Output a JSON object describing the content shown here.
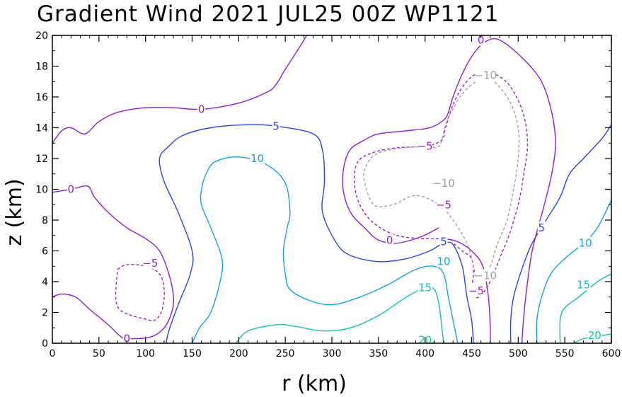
{
  "chart_data": {
    "type": "contour",
    "title": "Gradient Wind 2021 JUL25 00Z   WP1121",
    "xlabel": "r (km)",
    "ylabel": "z (km)",
    "xlim": [
      0,
      600
    ],
    "ylim": [
      0,
      20
    ],
    "x_ticks": [
      "0",
      "50",
      "100",
      "150",
      "200",
      "250",
      "300",
      "350",
      "400",
      "450",
      "500",
      "550",
      "600"
    ],
    "y_ticks": [
      "0",
      "2",
      "4",
      "6",
      "8",
      "10",
      "12",
      "14",
      "16",
      "18",
      "20"
    ],
    "colors": {
      "-10": "#a0a0a0",
      "-5": "#a01ec8",
      "0": "#8c1ed2",
      "5": "#2846dc",
      "10": "#14a0e6",
      "15": "#14beb4",
      "20": "#14c896"
    },
    "contours": [
      {
        "level": 0,
        "dashed": false,
        "points": [
          [
            0,
            13
          ],
          [
            10,
            13.8
          ],
          [
            20,
            14
          ],
          [
            35,
            13.6
          ],
          [
            50,
            14.4
          ],
          [
            70,
            15
          ],
          [
            100,
            15.3
          ],
          [
            130,
            15.3
          ],
          [
            160,
            15.2
          ],
          [
            200,
            15.6
          ],
          [
            230,
            16.3
          ],
          [
            240,
            16.8
          ],
          [
            250,
            17.8
          ],
          [
            265,
            19.2
          ],
          [
            273,
            20
          ]
        ]
      },
      {
        "level": 0,
        "dashed": false,
        "points": [
          [
            0,
            9.8
          ],
          [
            20,
            10
          ],
          [
            38,
            10.2
          ],
          [
            45,
            9.5
          ],
          [
            60,
            8.5
          ],
          [
            80,
            7.5
          ],
          [
            100,
            6.8
          ],
          [
            115,
            6
          ],
          [
            125,
            4.5
          ],
          [
            130,
            3
          ],
          [
            128,
            2
          ],
          [
            120,
            1
          ],
          [
            105,
            0.4
          ],
          [
            80,
            0.3
          ],
          [
            72,
            0.5
          ],
          [
            60,
            1.2
          ],
          [
            40,
            2.2
          ],
          [
            25,
            3
          ],
          [
            10,
            3.2
          ],
          [
            0,
            3
          ]
        ]
      },
      {
        "level": 0,
        "dashed": false,
        "points": [
          [
            415,
            7.5
          ],
          [
            395,
            6.9
          ],
          [
            370,
            6.5
          ],
          [
            350,
            6.7
          ],
          [
            335,
            7.5
          ],
          [
            320,
            8.5
          ],
          [
            312,
            10
          ],
          [
            313,
            11.5
          ],
          [
            320,
            12.6
          ],
          [
            335,
            13.2
          ],
          [
            350,
            13.6
          ],
          [
            380,
            13.8
          ],
          [
            405,
            14
          ],
          [
            420,
            14.5
          ],
          [
            425,
            15
          ],
          [
            430,
            16
          ],
          [
            440,
            17.5
          ],
          [
            452,
            18.8
          ],
          [
            465,
            19.6
          ],
          [
            480,
            19.7
          ],
          [
            505,
            18.5
          ],
          [
            525,
            17
          ],
          [
            536,
            15
          ],
          [
            540,
            13
          ],
          [
            536,
            11
          ],
          [
            528,
            9
          ],
          [
            515,
            6
          ],
          [
            508,
            3
          ],
          [
            505,
            1
          ],
          [
            504,
            0
          ]
        ]
      },
      {
        "level": 0,
        "dashed": false,
        "points": [
          [
            470,
            0
          ],
          [
            470,
            1
          ],
          [
            468,
            3
          ],
          [
            462,
            5
          ],
          [
            450,
            6
          ],
          [
            435,
            6.6
          ],
          [
            420,
            6.8
          ]
        ]
      },
      {
        "level": -5,
        "dashed": true,
        "points": [
          [
            420,
            6.8
          ],
          [
            400,
            6.8
          ],
          [
            370,
            7
          ],
          [
            345,
            7.8
          ],
          [
            330,
            9
          ],
          [
            324,
            10.5
          ],
          [
            328,
            11.8
          ],
          [
            345,
            12.4
          ],
          [
            370,
            12.7
          ],
          [
            400,
            12.8
          ],
          [
            418,
            13.2
          ],
          [
            422,
            14
          ],
          [
            430,
            15.5
          ],
          [
            442,
            16.8
          ],
          [
            455,
            17.5
          ],
          [
            470,
            17.6
          ],
          [
            490,
            16.8
          ],
          [
            505,
            15
          ],
          [
            510,
            13
          ],
          [
            506,
            11
          ],
          [
            500,
            9
          ],
          [
            490,
            7
          ],
          [
            480,
            5.5
          ],
          [
            470,
            4
          ],
          [
            458,
            3
          ],
          [
            450,
            3.3
          ],
          [
            452,
            4.5
          ],
          [
            450,
            5.5
          ],
          [
            440,
            6
          ],
          [
            430,
            6.5
          ]
        ]
      },
      {
        "level": -5,
        "dashed": true,
        "points": [
          [
            70,
            4.8
          ],
          [
            80,
            5.1
          ],
          [
            100,
            5
          ],
          [
            115,
            4.5
          ],
          [
            120,
            3.5
          ],
          [
            118,
            2.2
          ],
          [
            110,
            1.5
          ],
          [
            98,
            1.6
          ],
          [
            85,
            1.8
          ],
          [
            72,
            2.2
          ],
          [
            68,
            3
          ],
          [
            70,
            4.8
          ]
        ]
      },
      {
        "level": -10,
        "dashed": true,
        "points": [
          [
            455,
            4
          ],
          [
            452,
            5
          ],
          [
            445,
            6.5
          ],
          [
            430,
            8
          ],
          [
            415,
            9
          ],
          [
            390,
            9.6
          ],
          [
            365,
            9
          ],
          [
            345,
            9
          ],
          [
            335,
            10.5
          ],
          [
            336,
            11.4
          ],
          [
            345,
            12.2
          ],
          [
            365,
            12.6
          ],
          [
            400,
            12.8
          ],
          [
            415,
            12.8
          ],
          [
            422,
            14.2
          ],
          [
            428,
            15
          ],
          [
            440,
            16.2
          ],
          [
            455,
            17
          ],
          [
            470,
            17.2
          ],
          [
            490,
            15.8
          ],
          [
            500,
            14
          ],
          [
            500,
            12
          ],
          [
            495,
            10
          ],
          [
            488,
            8
          ],
          [
            478,
            6.5
          ],
          [
            470,
            5
          ],
          [
            462,
            4.5
          ],
          [
            458,
            4.2
          ]
        ]
      },
      {
        "level": 5,
        "dashed": false,
        "points": [
          [
            122,
            0
          ],
          [
            125,
            0.8
          ],
          [
            135,
            2.5
          ],
          [
            148,
            4.5
          ],
          [
            150,
            6
          ],
          [
            135,
            8.5
          ],
          [
            120,
            10.5
          ],
          [
            115,
            12
          ],
          [
            125,
            12.8
          ],
          [
            140,
            13.5
          ],
          [
            170,
            14
          ],
          [
            210,
            14.2
          ],
          [
            240,
            14.1
          ],
          [
            280,
            13.6
          ],
          [
            290,
            12.5
          ],
          [
            292,
            10.5
          ],
          [
            290,
            8.5
          ],
          [
            305,
            6.5
          ],
          [
            320,
            5.7
          ],
          [
            350,
            5.3
          ],
          [
            380,
            5.5
          ],
          [
            405,
            6
          ],
          [
            420,
            6.5
          ],
          [
            430,
            6.4
          ],
          [
            440,
            5
          ],
          [
            445,
            3
          ],
          [
            450,
            1.5
          ],
          [
            452,
            0
          ]
        ]
      },
      {
        "level": 5,
        "dashed": false,
        "points": [
          [
            492,
            0
          ],
          [
            492,
            1.5
          ],
          [
            495,
            3
          ],
          [
            505,
            5
          ],
          [
            515,
            6.5
          ],
          [
            530,
            8
          ],
          [
            545,
            9.5
          ],
          [
            555,
            11
          ],
          [
            570,
            12
          ],
          [
            590,
            13.3
          ],
          [
            600,
            14.2
          ]
        ]
      },
      {
        "level": 10,
        "dashed": false,
        "points": [
          [
            150,
            0
          ],
          [
            158,
            1
          ],
          [
            170,
            2
          ],
          [
            180,
            4
          ],
          [
            182,
            5.5
          ],
          [
            170,
            7.5
          ],
          [
            160,
            9
          ],
          [
            160,
            10
          ],
          [
            165,
            11
          ],
          [
            175,
            11.8
          ],
          [
            200,
            12.1
          ],
          [
            230,
            11.6
          ],
          [
            250,
            10.4
          ],
          [
            255,
            8.5
          ],
          [
            252,
            7.5
          ],
          [
            248,
            6
          ],
          [
            250,
            4.5
          ],
          [
            255,
            3.5
          ],
          [
            275,
            2.8
          ],
          [
            300,
            2.5
          ],
          [
            330,
            3
          ],
          [
            360,
            3.8
          ],
          [
            390,
            4.8
          ],
          [
            410,
            5
          ],
          [
            420,
            4.5
          ],
          [
            425,
            3
          ],
          [
            430,
            1.5
          ],
          [
            435,
            0
          ]
        ]
      },
      {
        "level": 10,
        "dashed": false,
        "points": [
          [
            520,
            0
          ],
          [
            520,
            1.5
          ],
          [
            525,
            3
          ],
          [
            535,
            4.5
          ],
          [
            550,
            5.5
          ],
          [
            570,
            6.5
          ],
          [
            585,
            7.5
          ],
          [
            600,
            9.3
          ]
        ]
      },
      {
        "level": 15,
        "dashed": false,
        "points": [
          [
            197,
            0
          ],
          [
            210,
            0.8
          ],
          [
            240,
            1.2
          ],
          [
            260,
            1.1
          ],
          [
            290,
            0.8
          ],
          [
            320,
            1
          ],
          [
            350,
            1.8
          ],
          [
            380,
            3
          ],
          [
            400,
            3.6
          ],
          [
            410,
            3.5
          ],
          [
            415,
            2.5
          ],
          [
            418,
            1
          ],
          [
            420,
            0
          ]
        ]
      },
      {
        "level": 15,
        "dashed": false,
        "points": [
          [
            545,
            0
          ],
          [
            545,
            1.5
          ],
          [
            550,
            2.3
          ],
          [
            565,
            3
          ],
          [
            585,
            4
          ],
          [
            600,
            4.5
          ]
        ]
      },
      {
        "level": 20,
        "dashed": false,
        "points": [
          [
            408,
            0
          ],
          [
            410,
            0.1
          ]
        ]
      },
      {
        "level": 20,
        "dashed": false,
        "points": [
          [
            560,
            0
          ],
          [
            570,
            0.3
          ],
          [
            590,
            0.5
          ],
          [
            600,
            0.6
          ]
        ]
      }
    ],
    "contour_labels": [
      {
        "text": "0",
        "x": 160,
        "y": 15.2,
        "level": 0
      },
      {
        "text": "0",
        "x": 20,
        "y": 10,
        "level": 0
      },
      {
        "text": "0",
        "x": 80,
        "y": 0.3,
        "level": 0
      },
      {
        "text": "0",
        "x": 460,
        "y": 19.7,
        "level": 0
      },
      {
        "text": "0",
        "x": 362,
        "y": 6.7,
        "level": 0
      },
      {
        "text": "-5",
        "x": 105,
        "y": 5.2,
        "level": -5
      },
      {
        "text": "-5",
        "x": 400,
        "y": 12.8,
        "level": -5
      },
      {
        "text": "-5",
        "x": 420,
        "y": 9,
        "level": -5
      },
      {
        "text": "-5",
        "x": 455,
        "y": 3.4,
        "level": -5
      },
      {
        "text": "-10",
        "x": 465,
        "y": 17.4,
        "level": -10
      },
      {
        "text": "-10",
        "x": 420,
        "y": 10.4,
        "level": -10
      },
      {
        "text": "-10",
        "x": 465,
        "y": 4.4,
        "level": -10
      },
      {
        "text": "5",
        "x": 240,
        "y": 14.1,
        "level": 5
      },
      {
        "text": "5",
        "x": 420,
        "y": 6.6,
        "level": 5
      },
      {
        "text": "5",
        "x": 525,
        "y": 7.5,
        "level": 5
      },
      {
        "text": "10",
        "x": 220,
        "y": 12,
        "level": 10
      },
      {
        "text": "10",
        "x": 420,
        "y": 5.3,
        "level": 10
      },
      {
        "text": "10",
        "x": 572,
        "y": 6.5,
        "level": 10
      },
      {
        "text": "15",
        "x": 400,
        "y": 3.6,
        "level": 15
      },
      {
        "text": "15",
        "x": 570,
        "y": 3.8,
        "level": 15
      },
      {
        "text": "20",
        "x": 400,
        "y": 0.2,
        "level": 20
      },
      {
        "text": "20",
        "x": 582,
        "y": 0.5,
        "level": 20
      }
    ]
  }
}
